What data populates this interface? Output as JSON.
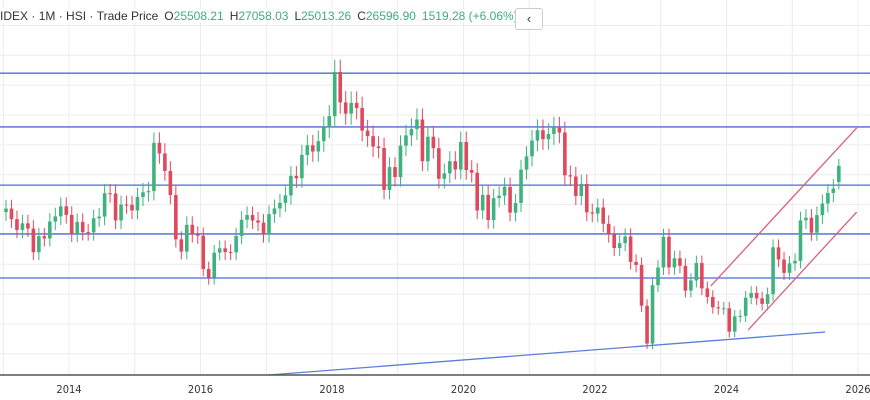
{
  "header": {
    "symbol": "IDEX",
    "interval": "1M",
    "exchange": "HSI",
    "price_type": "Trade Price",
    "open_label": "O",
    "open": "25508.21",
    "high_label": "H",
    "high": "27058.03",
    "low_label": "L",
    "low": "25013.26",
    "close_label": "C",
    "close": "26596.90",
    "change": "1519.28 (+6.06%)",
    "collapse_icon": "chevron-left-icon"
  },
  "chart_data": {
    "type": "candlestick",
    "interval": "monthly",
    "start": "2013-01",
    "x_ticks": [
      "2014",
      "2016",
      "2018",
      "2020",
      "2022",
      "2024",
      "2026"
    ],
    "ylim": [
      12580,
      36030
    ],
    "grid": true,
    "colors": {
      "up": "#3fb27f",
      "down": "#e0485e",
      "hline": "#4a6cd4",
      "channel": "#d9607a",
      "support": "#5b7fd8",
      "grid": "#ececec"
    },
    "closes": [
      23730,
      23020,
      22300,
      22740,
      22390,
      20800,
      21880,
      21730,
      22860,
      23210,
      23880,
      23306,
      22035,
      22837,
      22151,
      22134,
      23082,
      23191,
      24757,
      24742,
      22933,
      23998,
      23987,
      23605,
      24507,
      24823,
      24901,
      28133,
      27424,
      26250,
      24636,
      21670,
      20846,
      22640,
      21996,
      21914,
      19683,
      19112,
      20777,
      21067,
      20815,
      20794,
      21891,
      22977,
      23297,
      22935,
      22790,
      22001,
      23361,
      23741,
      24112,
      24615,
      25924,
      25765,
      27324,
      27970,
      27554,
      28246,
      29177,
      29919,
      32887,
      30845,
      30093,
      30808,
      30469,
      28955,
      28583,
      27888,
      27789,
      24980,
      26507,
      25846,
      27942,
      28633,
      29051,
      29699,
      26901,
      28543,
      27778,
      25725,
      26092,
      26907,
      26346,
      28190,
      26313,
      26130,
      23603,
      24644,
      22961,
      24427,
      24595,
      25177,
      23459,
      24107,
      26341,
      27231,
      28284,
      28980,
      28378,
      28725,
      29152,
      28828,
      25961,
      25879,
      24576,
      25377,
      23475,
      23398,
      23802,
      22713,
      21997,
      21089,
      21415,
      21860,
      20157,
      19954,
      17223,
      14687,
      18597,
      19781,
      21842,
      19786,
      20400,
      19895,
      18234,
      18916,
      20079,
      18382,
      17810,
      17112,
      17043,
      17047,
      15485,
      16511,
      16541,
      17763,
      18080,
      17719,
      17345,
      17989,
      21134,
      20317,
      19424,
      20060,
      20225,
      22941,
      23120,
      22119,
      23290,
      24072,
      24773,
      25077,
      26597
    ],
    "last_candle": {
      "open": 25508.21,
      "high": 27058.03,
      "low": 25013.26,
      "close": 26596.9
    },
    "horizontal_levels": [
      32800,
      29200,
      25300,
      22030,
      19080
    ],
    "trendlines": [
      {
        "kind": "support",
        "from": [
          2016.65,
          12450
        ],
        "to": [
          2025.5,
          15460
        ]
      },
      {
        "kind": "channel-upper",
        "from": [
          2023.76,
          18540
        ],
        "to": [
          2025.98,
          29130
        ]
      },
      {
        "kind": "channel-lower",
        "from": [
          2024.33,
          15600
        ],
        "to": [
          2025.98,
          23500
        ]
      }
    ]
  }
}
